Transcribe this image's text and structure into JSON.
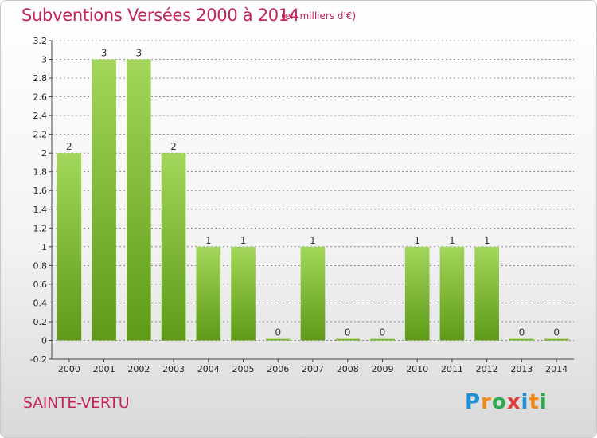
{
  "title": "Subventions Versées 2000 à 2014",
  "subtitle": "(en milliers d'€)",
  "city": "SAINTE-VERTU",
  "logo": {
    "letters": [
      "P",
      "r",
      "o",
      "x",
      "i",
      "t",
      "i"
    ],
    "colors": [
      "#1f8fd6",
      "#f08a1c",
      "#2fa84f",
      "#e03a3a",
      "#1f8fd6",
      "#f08a1c",
      "#2fa84f"
    ]
  },
  "colors": {
    "title": "#c2255c",
    "bar_top": "#a3d65a",
    "bar_bottom": "#5e9a18",
    "grid": "#555555"
  },
  "chart_data": {
    "type": "bar",
    "categories": [
      "2000",
      "2001",
      "2002",
      "2003",
      "2004",
      "2005",
      "2006",
      "2007",
      "2008",
      "2009",
      "2010",
      "2011",
      "2012",
      "2013",
      "2014"
    ],
    "values": [
      2,
      3,
      3,
      2,
      1,
      1,
      0,
      1,
      0,
      0,
      1,
      1,
      1,
      0,
      0
    ],
    "labels": [
      "2",
      "3",
      "3",
      "2",
      "1",
      "1",
      "0",
      "1",
      "0",
      "0",
      "1",
      "1",
      "1",
      "0",
      "0"
    ],
    "ylim": [
      -0.2,
      3.2
    ],
    "yticks": [
      -0.2,
      0,
      0.2,
      0.4,
      0.6,
      0.8,
      1,
      1.2,
      1.4,
      1.6,
      1.8,
      2,
      2.2,
      2.4,
      2.6,
      2.8,
      3,
      3.2
    ],
    "ytick_labels": [
      "-0.2",
      "0",
      "0.2",
      "0.4",
      "0.6",
      "0.8",
      "1",
      "1.2",
      "1.4",
      "1.6",
      "1.8",
      "2",
      "2.2",
      "2.4",
      "2.6",
      "2.8",
      "3",
      "3.2"
    ],
    "grid": "dashed-horizontal",
    "xlabel": "",
    "ylabel": ""
  }
}
